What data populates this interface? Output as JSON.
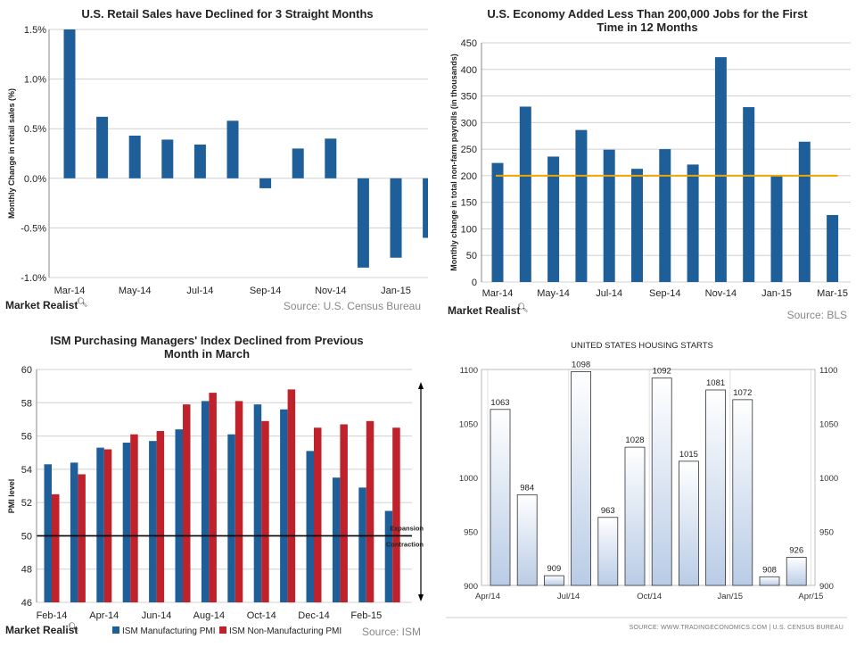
{
  "chart_data": [
    {
      "type": "bar",
      "title": "U.S. Retail Sales have Declined for 3 Straight Months",
      "ylabel": "Monthly Change in retail sales (%)",
      "xlabel": "",
      "ylim": [
        -1.0,
        1.5
      ],
      "yticks": [
        "1.5%",
        "1.0%",
        "0.5%",
        "0.0%",
        "-0.5%",
        "-1.0%"
      ],
      "xticks": [
        "Mar-14",
        "May-14",
        "Jul-14",
        "Sep-14",
        "Nov-14",
        "Jan-15"
      ],
      "categories": [
        "Mar-14",
        "Apr-14",
        "May-14",
        "Jun-14",
        "Jul-14",
        "Aug-14",
        "Sep-14",
        "Oct-14",
        "Nov-14",
        "Dec-14",
        "Jan-15",
        "Feb-15"
      ],
      "values": [
        1.5,
        0.62,
        0.43,
        0.39,
        0.34,
        0.58,
        -0.1,
        0.3,
        0.4,
        -0.9,
        -0.8,
        -0.6
      ],
      "color": "#1f5f99",
      "grid": "horizontal",
      "source": "Source: U.S. Census Bureau",
      "brand": "Market Realist"
    },
    {
      "type": "bar",
      "title": [
        "U.S. Economy Added Less Than 200,000 Jobs for the First",
        "Time in 12 Months"
      ],
      "ylabel": "Monthly change in total non-farm payrolls (in thousands)",
      "xlabel": "",
      "ylim": [
        0,
        450
      ],
      "yticks": [
        "450",
        "400",
        "350",
        "300",
        "250",
        "200",
        "150",
        "100",
        "50",
        "0"
      ],
      "xticks": [
        "Mar-14",
        "May-14",
        "Jul-14",
        "Sep-14",
        "Nov-14",
        "Jan-15",
        "Mar-15"
      ],
      "categories": [
        "Mar-14",
        "Apr-14",
        "May-14",
        "Jun-14",
        "Jul-14",
        "Aug-14",
        "Sep-14",
        "Oct-14",
        "Nov-14",
        "Dec-14",
        "Jan-15",
        "Feb-15",
        "Mar-15"
      ],
      "values": [
        224,
        330,
        236,
        286,
        249,
        213,
        250,
        221,
        423,
        329,
        201,
        264,
        126
      ],
      "reference_line": 200,
      "color": "#1f5f99",
      "line_color": "#f0a500",
      "grid": "horizontal",
      "source": "Source: BLS",
      "brand": "Market Realist"
    },
    {
      "type": "bar",
      "title": [
        "ISM Purchasing Managers' Index Declined from Previous",
        "Month in March"
      ],
      "ylabel": "PMI level",
      "xlabel": "",
      "ylim": [
        46,
        60
      ],
      "yticks": [
        "60",
        "58",
        "56",
        "54",
        "52",
        "50",
        "48",
        "46"
      ],
      "xticks": [
        "Feb-14",
        "Apr-14",
        "Jun-14",
        "Aug-14",
        "Oct-14",
        "Dec-14",
        "Feb-15"
      ],
      "categories": [
        "Feb-14",
        "Mar-14",
        "Apr-14",
        "May-14",
        "Jun-14",
        "Jul-14",
        "Aug-14",
        "Sep-14",
        "Oct-14",
        "Nov-14",
        "Dec-14",
        "Jan-15",
        "Feb-15",
        "Mar-15"
      ],
      "series": [
        {
          "name": "ISM Manufacturing PMI",
          "color": "#1f5f99",
          "values": [
            54.3,
            54.4,
            55.3,
            55.6,
            55.7,
            56.4,
            58.1,
            56.1,
            57.9,
            57.6,
            55.1,
            53.5,
            52.9,
            51.5
          ]
        },
        {
          "name": "ISM Non-Manufacturing PMI",
          "color": "#c0222b",
          "values": [
            52.5,
            53.7,
            55.2,
            56.1,
            56.3,
            57.9,
            58.6,
            58.1,
            56.9,
            58.8,
            56.5,
            56.7,
            56.9,
            56.5
          ]
        }
      ],
      "reference_line": 50,
      "band_labels": [
        "Expansion",
        "Contraction"
      ],
      "grid": "horizontal",
      "source": "Source: ISM",
      "brand": "Market Realist"
    },
    {
      "type": "bar",
      "title": "UNITED STATES HOUSING STARTS",
      "ylabel": "",
      "xlabel": "",
      "ylim": [
        900,
        1100
      ],
      "yticks": [
        "1100",
        "1050",
        "1000",
        "950",
        "900"
      ],
      "xticks": [
        "Apr/14",
        "Jul/14",
        "Oct/14",
        "Jan/15",
        "Apr/15"
      ],
      "categories": [
        "Apr/14",
        "May/14",
        "Jun/14",
        "Jul/14",
        "Aug/14",
        "Sep/14",
        "Oct/14",
        "Nov/14",
        "Dec/14",
        "Jan/15",
        "Feb/15",
        "Mar/15"
      ],
      "values": [
        1063,
        984,
        909,
        1098,
        963,
        1028,
        1092,
        1015,
        1081,
        1072,
        908,
        926
      ],
      "data_labels": [
        "1063",
        "984",
        "909",
        "1098",
        "963",
        "1028",
        "1092",
        "1015",
        "1081",
        "1072",
        "908",
        "926"
      ],
      "bar_gradient": [
        "#ffffff",
        "#b9cce6"
      ],
      "grid": "vertical",
      "source": "SOURCE: WWW.TRADINGECONOMICS.COM  |  U.S. CENSUS BUREAU"
    }
  ]
}
